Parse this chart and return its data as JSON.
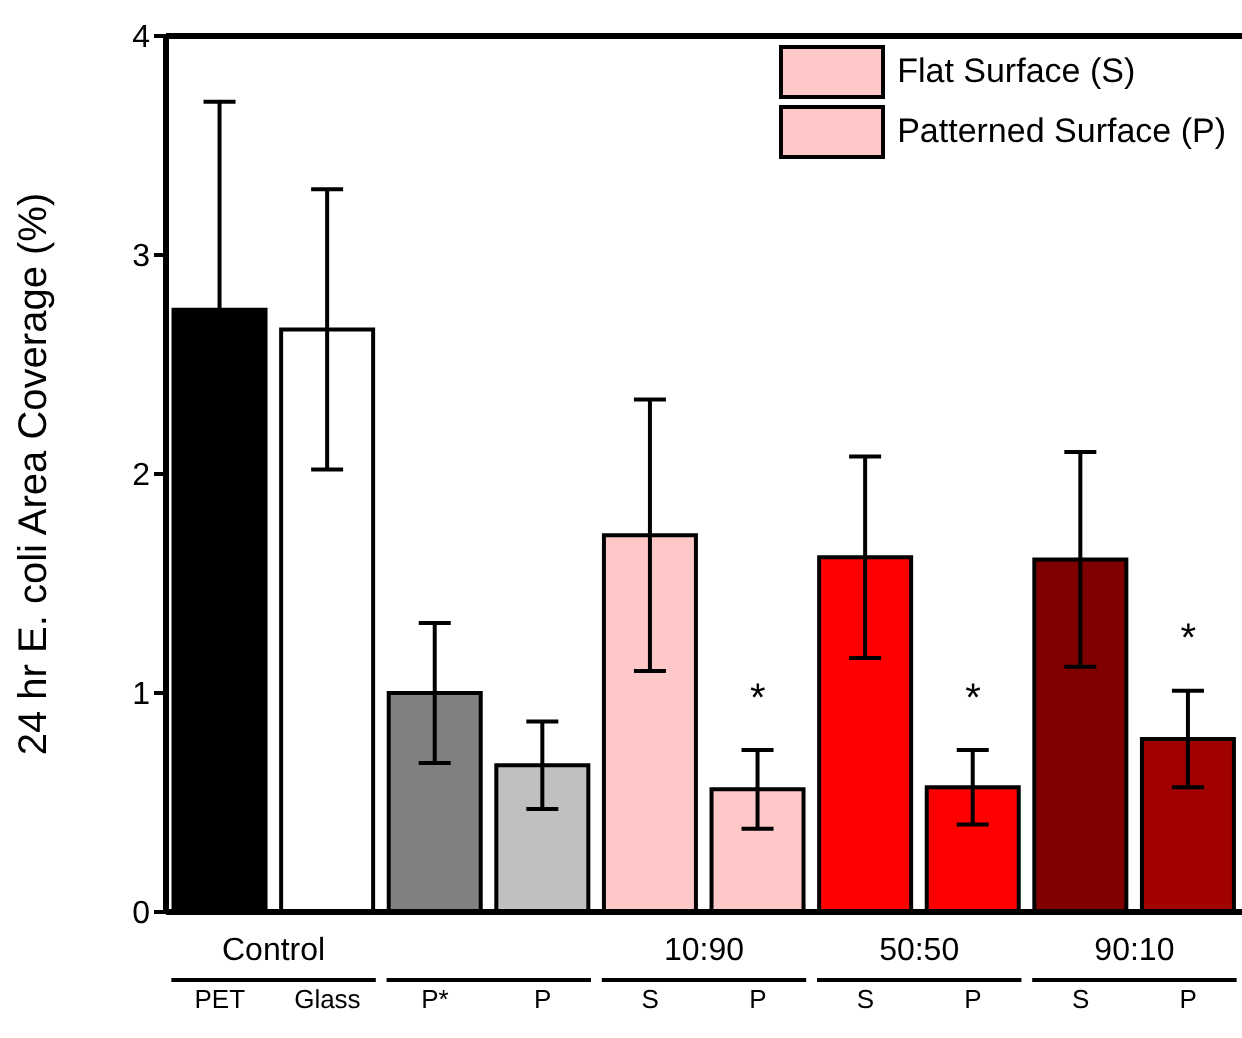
{
  "chart_data": {
    "type": "bar",
    "ylabel": "24 hr E. coli Area Coverage (%)",
    "categories": [
      "PET",
      "Glass",
      "P*",
      "P",
      "S",
      "P",
      "S",
      "P",
      "S",
      "P"
    ],
    "series": [
      {
        "colors": [
          "#000000",
          "#ffffff",
          "#808080",
          null,
          null,
          null,
          null,
          null,
          null,
          null
        ],
        "values": [
          2.75,
          2.66,
          1.0,
          null,
          null,
          null,
          null,
          null,
          null,
          null
        ],
        "errors": [
          0.95,
          0.64,
          0.32,
          null,
          null,
          null,
          null,
          null,
          null,
          null
        ]
      },
      {
        "name": "Flat Surface (S)",
        "color": "#ffc8c8",
        "colors": [
          null,
          null,
          null,
          null,
          "#ffc8c8",
          null,
          "#ff0000",
          null,
          "#800000",
          null
        ],
        "values": [
          null,
          null,
          null,
          null,
          1.72,
          null,
          1.62,
          null,
          1.61,
          null
        ],
        "errors": [
          null,
          null,
          null,
          null,
          0.62,
          null,
          0.46,
          null,
          0.49,
          null
        ]
      },
      {
        "name": "Patterned Surface (P)",
        "color": "#ffc8c8",
        "colors": [
          null,
          null,
          null,
          "#c0c0c0",
          null,
          "#ffc8c8",
          null,
          "#ff0000",
          null,
          "#a00000"
        ],
        "values": [
          null,
          null,
          null,
          0.67,
          null,
          0.56,
          null,
          0.57,
          null,
          0.79
        ],
        "errors": [
          null,
          null,
          null,
          0.2,
          null,
          0.18,
          null,
          0.17,
          null,
          0.22
        ]
      }
    ],
    "annotations": [
      "Control",
      "10:90",
      "50:50",
      "90:10",
      "*",
      "*",
      "*"
    ],
    "ylim": [
      0,
      4
    ],
    "yticks": [
      0,
      1,
      2,
      3,
      4
    ],
    "legend": "top right"
  }
}
